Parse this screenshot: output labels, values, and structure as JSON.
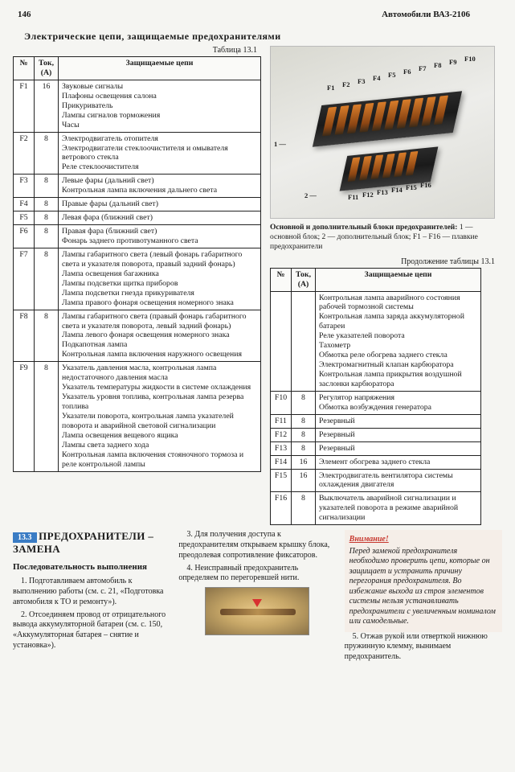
{
  "header": {
    "pageno": "146",
    "title": "Автомобили ВАЗ-2106"
  },
  "section_title": "Электрические цепи, защищаемые предохранителями",
  "table_label": "Таблица 13.1",
  "table_headers": {
    "n": "№",
    "amp": "Ток, (А)",
    "desc": "Защищаемые цепи"
  },
  "fuses_left": [
    {
      "n": "F1",
      "a": "16",
      "d": "Звуковые сигналы\nПлафоны освещения салона\nПрикуриватель\nЛампы сигналов торможения\nЧасы"
    },
    {
      "n": "F2",
      "a": "8",
      "d": "Электродвигатель отопителя\nЭлектродвигатели стеклоочистителя и омывателя ветрового стекла\nРеле стеклоочистителя"
    },
    {
      "n": "F3",
      "a": "8",
      "d": "Левые фары (дальний свет)\nКонтрольная лампа включения дальнего света"
    },
    {
      "n": "F4",
      "a": "8",
      "d": "Правые фары (дальний свет)"
    },
    {
      "n": "F5",
      "a": "8",
      "d": "Левая фара (ближний свет)"
    },
    {
      "n": "F6",
      "a": "8",
      "d": "Правая фара (ближний свет)\nФонарь заднего противотуманного света"
    },
    {
      "n": "F7",
      "a": "8",
      "d": "Лампы габаритного света (левый фонарь габаритного света и указателя поворота, правый задний фонарь)\nЛампа освещения багажника\nЛампы подсветки щитка приборов\nЛампа подсветки гнезда прикуривателя\nЛампа правого фонаря освещения номерного знака"
    },
    {
      "n": "F8",
      "a": "8",
      "d": "Лампы габаритного света (правый фонарь габаритного света и указателя поворота, левый задний фонарь)\nЛампа левого фонаря освещения номерного знака\nПодкапотная лампа\nКонтрольная лампа включения наружного освещения"
    },
    {
      "n": "F9",
      "a": "8",
      "d": "Указатель давления масла, контрольная лампа недостаточного давления масла\nУказатель температуры жидкости в системе охлаждения\nУказатель уровня топлива, контрольная лампа резерва топлива\nУказатели поворота, контрольная лампа указателей поворота и аварийной световой сигнализации\nЛампа освещения вещевого ящика\nЛампы света заднего хода\nКонтрольная лампа включения стояночного тормоза и реле контрольной лампы"
    }
  ],
  "caption": {
    "bold": "Основной и дополнительный блоки предохранителей:",
    "rest": "1 — основной блок; 2 — дополнительный блок; F1 – F16 — плавкие предохранители"
  },
  "cont_label": "Продолжение таблицы 13.1",
  "fuses_right": [
    {
      "n": "",
      "a": "",
      "d": "Контрольная лампа аварийного состояния рабочей тормозной системы\nКонтрольная лампа заряда аккумуляторной батареи\nРеле указателей поворота\nТахометр\nОбмотка реле обогрева заднего стекла\nЭлектромагнитный клапан карбюратора\nКонтрольная лампа прикрытия воздушной заслонки карбюратора"
    },
    {
      "n": "F10",
      "a": "8",
      "d": "Регулятор напряжения\nОбмотка возбуждения генератора"
    },
    {
      "n": "F11",
      "a": "8",
      "d": "Резервный"
    },
    {
      "n": "F12",
      "a": "8",
      "d": "Резервный"
    },
    {
      "n": "F13",
      "a": "8",
      "d": "Резервный"
    },
    {
      "n": "F14",
      "a": "16",
      "d": "Элемент обогрева заднего стекла"
    },
    {
      "n": "F15",
      "a": "16",
      "d": "Электродвигатель вентилятора системы охлаждения двигателя"
    },
    {
      "n": "F16",
      "a": "8",
      "d": "Выключатель аварийной сигнализации и указателей поворота в режиме аварийной сигнализации"
    }
  ],
  "flabels_top": [
    "F1",
    "F2",
    "F3",
    "F4",
    "F5",
    "F6",
    "F7",
    "F8",
    "F9",
    "F10"
  ],
  "flabels_bot": [
    "F11",
    "F12",
    "F13",
    "F14",
    "F15",
    "F16"
  ],
  "sec133": {
    "flag": "13.3",
    "title": "ПРЕДОХРАНИТЕЛИ – ЗАМЕНА",
    "sub": "Последовательность выполнения"
  },
  "steps": {
    "s1": "1. Подготавливаем автомобиль к выполнению работы (см. с. 21, «Подготовка автомобиля к ТО и ремонту»).",
    "s2": "2. Отсоединяем провод от отрицательного вывода аккумуляторной батареи (см. с. 150, «Аккумуляторная батарея – снятие и установка»).",
    "s3": "3. Для получения доступа к предохранителям открываем крышку блока, преодолевая сопротивление фиксаторов.",
    "s4": "4. Неисправный предохранитель определяем по перегоревшей нити.",
    "s5": "5. Отжав рукой или отверткой нижнюю пружинную клемму, вынимаем предохранитель."
  },
  "warning": {
    "title": "Внимание!",
    "body": "Перед заменой предохранителя необходимо проверить цепи, которые он защищает и устранить причину перегорания предохранителя. Во избежание выхода из строя элементов системы нельзя устанавливать предохранители с увеличенным номиналом или самодельные."
  }
}
